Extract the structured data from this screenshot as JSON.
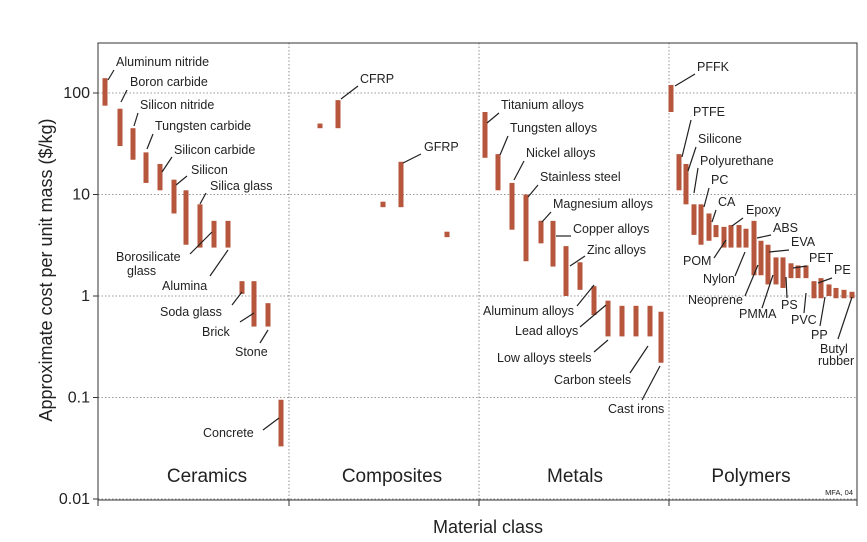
{
  "chart_data": {
    "type": "bar",
    "subtype": "range-bars",
    "ylabel": "Approximate cost per unit mass ($/kg)",
    "xlabel": "Material class",
    "yscale": "log",
    "ylim": [
      0.01,
      300
    ],
    "yticks": [
      {
        "value": 0.01,
        "label": "0.01"
      },
      {
        "value": 0.1,
        "label": "0.1"
      },
      {
        "value": 1,
        "label": "1"
      },
      {
        "value": 10,
        "label": "10"
      },
      {
        "value": 100,
        "label": "100"
      }
    ],
    "grid": "dotted",
    "bar_color": "#b5563d",
    "credit": "MFA, 04",
    "classes": [
      "Ceramics",
      "Composites",
      "Metals",
      "Polymers"
    ],
    "series": [
      {
        "class": "Ceramics",
        "bars": [
          [
            75,
            140
          ],
          [
            30,
            70
          ],
          [
            22,
            45
          ],
          [
            13,
            26
          ],
          [
            11,
            20
          ],
          [
            6.5,
            14
          ],
          [
            3.2,
            11
          ],
          [
            3,
            8
          ],
          [
            3,
            5.5
          ],
          [
            3,
            5.5
          ],
          [
            1.05,
            1.4
          ],
          [
            0.5,
            1.4
          ],
          [
            0.5,
            0.85
          ],
          [
            0.033,
            0.095
          ]
        ]
      },
      {
        "class": "Composites",
        "bars": [
          [
            45,
            50
          ],
          [
            45,
            85
          ],
          [
            7.5,
            8.5
          ],
          [
            7.5,
            21
          ],
          [
            3.8,
            4.3
          ]
        ]
      },
      {
        "class": "Metals",
        "bars": [
          [
            23,
            65
          ],
          [
            11,
            25
          ],
          [
            4.5,
            13
          ],
          [
            2.2,
            10
          ],
          [
            3.3,
            5.5
          ],
          [
            3.8,
            5.5
          ],
          [
            1.95,
            5.5
          ],
          [
            1,
            3.1
          ],
          [
            1.15,
            2.15
          ],
          [
            0.65,
            1.25
          ],
          [
            0.4,
            0.9
          ],
          [
            0.4,
            0.8
          ],
          [
            0.4,
            0.8
          ],
          [
            0.4,
            0.8
          ],
          [
            0.22,
            0.7
          ]
        ]
      },
      {
        "class": "Polymers",
        "bars": [
          [
            65,
            120
          ],
          [
            11,
            25
          ],
          [
            8,
            20
          ],
          [
            4,
            8
          ],
          [
            3.2,
            8
          ],
          [
            3.5,
            6.5
          ],
          [
            3.8,
            5
          ],
          [
            3,
            4.8
          ],
          [
            3,
            5
          ],
          [
            3,
            5
          ],
          [
            3,
            4.6
          ],
          [
            1.6,
            5.5
          ],
          [
            1.6,
            3.5
          ],
          [
            1.3,
            3.2
          ],
          [
            1.3,
            2.4
          ],
          [
            1.2,
            2.4
          ],
          [
            1.5,
            2.1
          ],
          [
            1.5,
            2
          ],
          [
            1.5,
            2
          ],
          [
            0.95,
            1.4
          ],
          [
            0.95,
            1.5
          ],
          [
            1,
            1.3
          ],
          [
            0.95,
            1.2
          ],
          [
            0.95,
            1.15
          ],
          [
            0.95,
            1.1
          ]
        ]
      }
    ],
    "labels": [
      {
        "text": "Aluminum nitride",
        "class": "Ceramics"
      },
      {
        "text": "Boron carbide",
        "class": "Ceramics"
      },
      {
        "text": "Silicon nitride",
        "class": "Ceramics"
      },
      {
        "text": "Tungsten carbide",
        "class": "Ceramics"
      },
      {
        "text": "Silicon carbide",
        "class": "Ceramics"
      },
      {
        "text": "Silicon",
        "class": "Ceramics"
      },
      {
        "text": "Silica glass",
        "class": "Ceramics"
      },
      {
        "text": "Borosilicate",
        "class": "Ceramics"
      },
      {
        "text": "glass",
        "class": "Ceramics"
      },
      {
        "text": "Alumina",
        "class": "Ceramics"
      },
      {
        "text": "Soda glass",
        "class": "Ceramics"
      },
      {
        "text": "Brick",
        "class": "Ceramics"
      },
      {
        "text": "Stone",
        "class": "Ceramics"
      },
      {
        "text": "Concrete",
        "class": "Ceramics"
      },
      {
        "text": "CFRP",
        "class": "Composites"
      },
      {
        "text": "GFRP",
        "class": "Composites"
      },
      {
        "text": "Titanium alloys",
        "class": "Metals"
      },
      {
        "text": "Tungsten alloys",
        "class": "Metals"
      },
      {
        "text": "Nickel alloys",
        "class": "Metals"
      },
      {
        "text": "Stainless steel",
        "class": "Metals"
      },
      {
        "text": "Magnesium alloys",
        "class": "Metals"
      },
      {
        "text": "Copper alloys",
        "class": "Metals"
      },
      {
        "text": "Zinc alloys",
        "class": "Metals"
      },
      {
        "text": "Aluminum alloys",
        "class": "Metals"
      },
      {
        "text": "Lead alloys",
        "class": "Metals"
      },
      {
        "text": "Low alloys steels",
        "class": "Metals"
      },
      {
        "text": "Carbon steels",
        "class": "Metals"
      },
      {
        "text": "Cast irons",
        "class": "Metals"
      },
      {
        "text": "PFFK",
        "class": "Polymers"
      },
      {
        "text": "PTFE",
        "class": "Polymers"
      },
      {
        "text": "Silicone",
        "class": "Polymers"
      },
      {
        "text": "Polyurethane",
        "class": "Polymers"
      },
      {
        "text": "PC",
        "class": "Polymers"
      },
      {
        "text": "CA",
        "class": "Polymers"
      },
      {
        "text": "Epoxy",
        "class": "Polymers"
      },
      {
        "text": "POM",
        "class": "Polymers"
      },
      {
        "text": "ABS",
        "class": "Polymers"
      },
      {
        "text": "EVA",
        "class": "Polymers"
      },
      {
        "text": "Nylon",
        "class": "Polymers"
      },
      {
        "text": "PET",
        "class": "Polymers"
      },
      {
        "text": "PE",
        "class": "Polymers"
      },
      {
        "text": "Neoprene",
        "class": "Polymers"
      },
      {
        "text": "PS",
        "class": "Polymers"
      },
      {
        "text": "PMMA",
        "class": "Polymers"
      },
      {
        "text": "PVC",
        "class": "Polymers"
      },
      {
        "text": "PP",
        "class": "Polymers"
      },
      {
        "text": "Butyl",
        "class": "Polymers"
      },
      {
        "text": "rubber",
        "class": "Polymers"
      }
    ]
  }
}
